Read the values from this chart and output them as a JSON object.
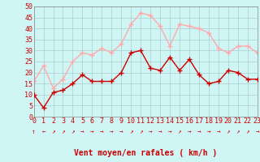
{
  "hours": [
    0,
    1,
    2,
    3,
    4,
    5,
    6,
    7,
    8,
    9,
    10,
    11,
    12,
    13,
    14,
    15,
    16,
    17,
    18,
    19,
    20,
    21,
    22,
    23
  ],
  "vent_moyen": [
    10,
    4,
    11,
    12,
    15,
    19,
    16,
    16,
    16,
    20,
    29,
    30,
    22,
    21,
    27,
    21,
    26,
    19,
    15,
    16,
    21,
    20,
    17,
    17
  ],
  "en_rafales": [
    16,
    23,
    13,
    17,
    25,
    29,
    28,
    31,
    29,
    33,
    42,
    47,
    46,
    41,
    32,
    42,
    41,
    40,
    38,
    31,
    29,
    32,
    32,
    29
  ],
  "arrow_chars": [
    "↑",
    "←",
    "↗",
    "↗",
    "↗",
    "→",
    "→",
    "→",
    "→",
    "→",
    "↗",
    "↗",
    "→",
    "→",
    "→",
    "↗",
    "→",
    "→",
    "→",
    "→",
    "↗",
    "↗",
    "↗",
    "→"
  ],
  "color_moyen": "#cc0000",
  "color_rafales": "#ffaaaa",
  "bg_color": "#cff5f5",
  "grid_color": "#aacccc",
  "ylim": [
    0,
    50
  ],
  "yticks": [
    0,
    5,
    10,
    15,
    20,
    25,
    30,
    35,
    40,
    45,
    50
  ],
  "xlabel": "Vent moyen/en rafales ( km/h )",
  "xlabel_color": "#cc0000",
  "xlabel_fontsize": 7,
  "tick_fontsize": 6,
  "marker_size": 4,
  "line_width": 1.0
}
